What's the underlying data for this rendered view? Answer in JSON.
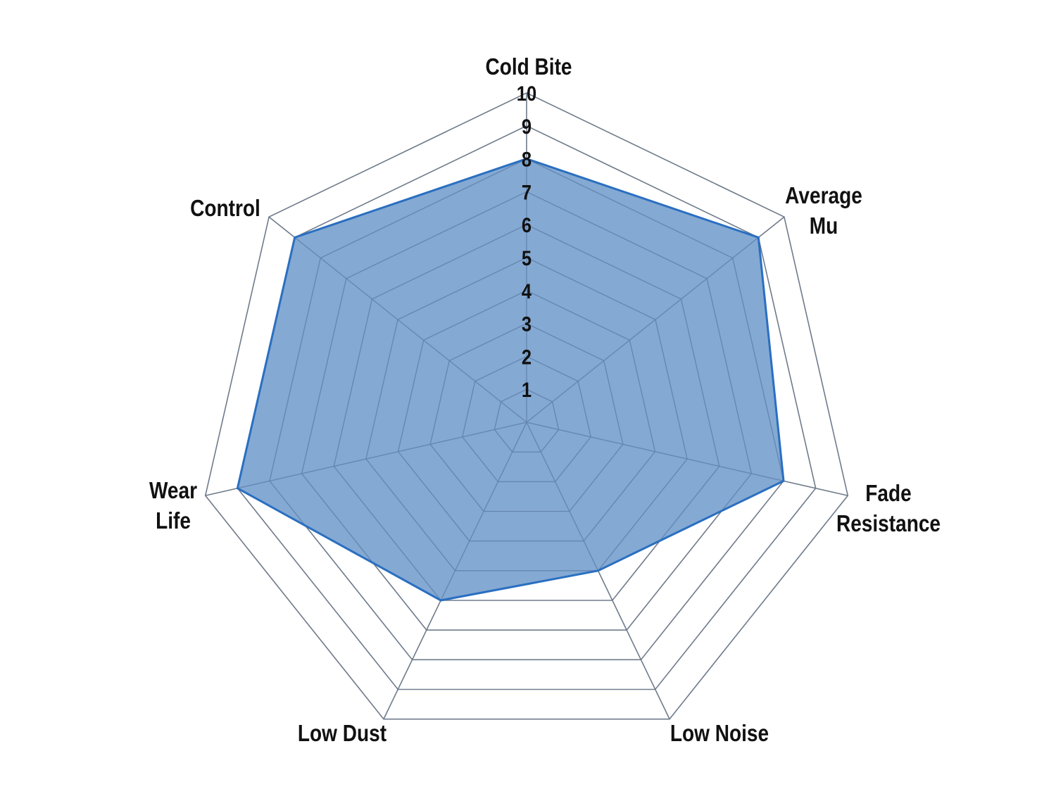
{
  "chart_data": {
    "type": "radar",
    "axes": [
      "Cold Bite",
      "Average Mu",
      "Fade Resistance",
      "Low Noise",
      "Low Dust",
      "Wear Life",
      "Control"
    ],
    "axis_label_lines": [
      [
        "Cold Bite"
      ],
      [
        "Average",
        "Mu"
      ],
      [
        "Fade",
        "Resistance"
      ],
      [
        "Low Noise"
      ],
      [
        "Low Dust"
      ],
      [
        "Wear",
        "Life"
      ],
      [
        "Control"
      ]
    ],
    "values": [
      8,
      9,
      8,
      5,
      6,
      9,
      9
    ],
    "rlim": [
      0,
      10
    ],
    "ticks": [
      "1",
      "2",
      "3",
      "4",
      "5",
      "6",
      "7",
      "8",
      "9",
      "10"
    ],
    "grid": true,
    "colors": {
      "fill": "#6f9acb",
      "stroke": "#2a6fc0",
      "grid": "#7a7a7a"
    }
  }
}
